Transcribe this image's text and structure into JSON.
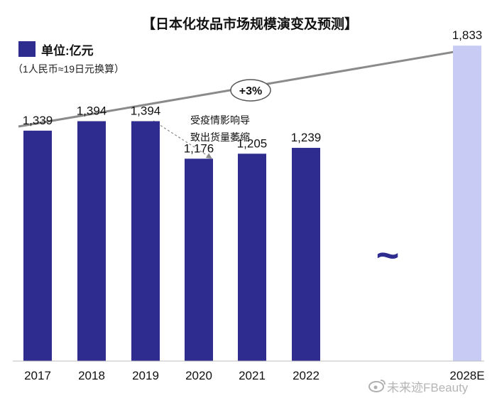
{
  "chart_data": {
    "type": "bar",
    "title": "【日本化妆品市场规模演变及预测】",
    "legend": {
      "label": "单位:亿元",
      "note": "（1人民币≈19日元换算）",
      "color": "#2e2c8f"
    },
    "categories": [
      "2017",
      "2018",
      "2019",
      "2020",
      "2021",
      "2022",
      "2028E"
    ],
    "values": [
      1339,
      1394,
      1394,
      1176,
      1205,
      1239,
      1833
    ],
    "value_labels": [
      "1,339",
      "1,394",
      "1,394",
      "1,176",
      "1,205",
      "1,239",
      "1,833"
    ],
    "bar_colors": [
      "#2e2c8f",
      "#2e2c8f",
      "#2e2c8f",
      "#2e2c8f",
      "#2e2c8f",
      "#2e2c8f",
      "#c8ccf5"
    ],
    "ylim": [
      0,
      1900
    ],
    "grid": false,
    "annotations": {
      "growth": "+3%",
      "covid_line1": "受疫情影响导",
      "covid_line2": "致出货量萎缩",
      "gap_symbol": "~"
    },
    "watermark": "未来迹FBeauty"
  }
}
